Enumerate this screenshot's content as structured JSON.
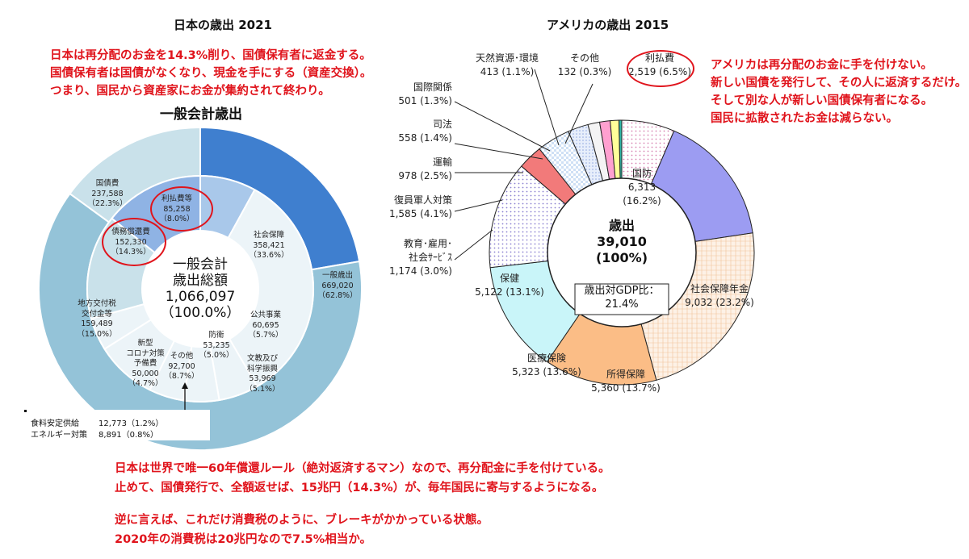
{
  "japan": {
    "title": "日本の歳出 2021",
    "note_lines": [
      "日本は再分配のお金を14.3%削り、国債保有者に返金する。",
      "国債保有者は国債がなくなり、現金を手にする（資産交換）。",
      "つまり、国民から資産家にお金が集約されて終わり。"
    ],
    "chart_title": "一般会計歳出",
    "center": {
      "l1": "一般会計",
      "l2": "歳出総額",
      "l3": "1,066,097",
      "l4": "（100.0%）"
    },
    "labels": {
      "kokusaihi": "国債費\n237,588\n（22.3%）",
      "ribaraihi": "利払費等\n85,258\n（8.0%）",
      "saimu": "債務償還費\n152,330\n（14.3%）",
      "shakai": "社会保障\n358,421\n（33.6%）",
      "ippan": "一般歳出\n669,020\n（62.8%）",
      "chiho": "地方交付税\n交付金等\n159,489\n（15.0%）",
      "corona": "新型\nコロナ対策\n予備費\n50,000\n（4.7%）",
      "sonota": "その他\n92,700\n（8.7%）",
      "bouei": "防衛\n53,235\n（5.0%）",
      "koukyo": "公共事業\n60,695\n（5.7%）",
      "bunkyo": "文教及び\n科学振興\n53,969\n（5.1%）"
    },
    "small_rows": [
      {
        "name": "食料安定供給",
        "value": "12,773（1.2%）"
      },
      {
        "name": "エネルギー対策",
        "value": "8,891（0.8%）"
      }
    ]
  },
  "usa": {
    "title": "アメリカの歳出 2015",
    "note_lines": [
      "アメリカは再分配のお金に手を付けない。",
      "新しい国債を発行して、その人に返済するだけ。",
      "そして別な人が新しい国債保有者になる。",
      "国民に拡散されたお金は減らない。"
    ],
    "center": {
      "l1": "歳出",
      "l2": "39,010",
      "l3": "(100%)",
      "box1": "歳出対GDP比：",
      "box2": "21.4%"
    },
    "labels": {
      "tennen": "天然資源･環境\n413 (1.1%)",
      "sonota": "その他\n132 (0.3%)",
      "ribarai": "利払費\n2,519 (6.5%)",
      "kokusai": "国際関係\n501 (1.3%)",
      "shihou": "司法\n558 (1.4%)",
      "unyu": "運輸\n978 (2.5%)",
      "fukuin": "復員軍人対策\n1,585 (4.1%)",
      "kyoiku": "教育･雇用･\n社会ｻｰﾋﾞｽ\n1,174 (3.0%)",
      "kokubou": "国防\n6,313 (16.2%)",
      "nenkin": "社会保障年金\n9,032 (23.2%)",
      "hoken": "保健\n5,122 (13.1%)",
      "shotoku": "所得保障\n5,360 (13.7%)",
      "iryo": "医療保険\n5,323 (13.6%)"
    }
  },
  "bottom_lines": [
    "日本は世界で唯一60年償還ルール（絶対返済するマン）なので、再分配金に手を付けている。",
    "止めて、国債発行で、全額返せば、15兆円（14.3%）が、毎年国民に寄与するようになる。",
    "逆に言えば、これだけ消費税のように、ブレーキがかかっている状態。",
    "2020年の消費税は20兆円なので7.5%相当か。"
  ],
  "colors": {
    "red": "#e0141c",
    "jp_dark": "#3f7fcf",
    "jp_mid": "#94c3d8",
    "jp_light": "#c9e1ea"
  },
  "chart_data": [
    {
      "type": "pie",
      "title": "一般会計歳出",
      "unit": "億円",
      "total": 1066097,
      "outer_ring": [
        {
          "label": "国債費",
          "value": 237588,
          "pct": 22.3
        },
        {
          "label": "一般歳出",
          "value": 669020,
          "pct": 62.8
        },
        {
          "label": "地方交付税交付金等",
          "value": 159489,
          "pct": 15.0
        }
      ],
      "inner_ring": [
        {
          "label": "利払費等",
          "value": 85258,
          "pct": 8.0
        },
        {
          "label": "社会保障",
          "value": 358421,
          "pct": 33.6
        },
        {
          "label": "公共事業",
          "value": 60695,
          "pct": 5.7
        },
        {
          "label": "文教及び科学振興",
          "value": 53969,
          "pct": 5.1
        },
        {
          "label": "防衛",
          "value": 53235,
          "pct": 5.0
        },
        {
          "label": "その他",
          "value": 92700,
          "pct": 8.7
        },
        {
          "label": "新型コロナ対策予備費",
          "value": 50000,
          "pct": 4.7
        },
        {
          "label": "地方交付税交付金等",
          "value": 159489,
          "pct": 15.0
        },
        {
          "label": "債務償還費",
          "value": 152330,
          "pct": 14.3
        }
      ]
    },
    {
      "type": "pie",
      "title": "アメリカの歳出 2015",
      "unit": "億ドル",
      "total": 39010,
      "slices": [
        {
          "label": "利払費",
          "value": 2519,
          "pct": 6.5
        },
        {
          "label": "国防",
          "value": 6313,
          "pct": 16.2
        },
        {
          "label": "社会保障年金",
          "value": 9032,
          "pct": 23.2
        },
        {
          "label": "所得保障",
          "value": 5360,
          "pct": 13.7
        },
        {
          "label": "医療保険",
          "value": 5323,
          "pct": 13.6
        },
        {
          "label": "保健",
          "value": 5122,
          "pct": 13.1
        },
        {
          "label": "教育・雇用・社会サービス",
          "value": 1174,
          "pct": 3.0
        },
        {
          "label": "復員軍人対策",
          "value": 1585,
          "pct": 4.1
        },
        {
          "label": "運輸",
          "value": 978,
          "pct": 2.5
        },
        {
          "label": "司法",
          "value": 558,
          "pct": 1.4
        },
        {
          "label": "国際関係",
          "value": 501,
          "pct": 1.3
        },
        {
          "label": "天然資源・環境",
          "value": 413,
          "pct": 1.1
        },
        {
          "label": "その他",
          "value": 132,
          "pct": 0.3
        }
      ]
    }
  ]
}
